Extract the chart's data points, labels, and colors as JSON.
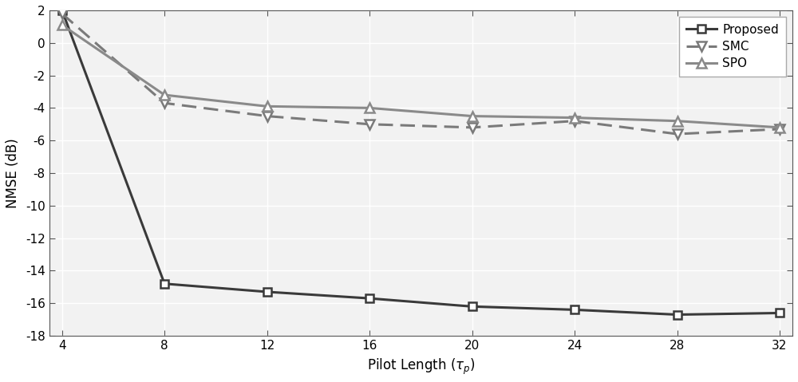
{
  "x": [
    4,
    8,
    12,
    16,
    20,
    24,
    28,
    32
  ],
  "proposed": [
    2.0,
    -14.8,
    -15.3,
    -15.7,
    -16.2,
    -16.4,
    -16.7,
    -16.6
  ],
  "smc": [
    1.8,
    -3.7,
    -4.5,
    -5.0,
    -5.2,
    -4.8,
    -5.6,
    -5.3
  ],
  "spo": [
    1.1,
    -3.2,
    -3.9,
    -4.0,
    -4.5,
    -4.6,
    -4.8,
    -5.2
  ],
  "proposed_color": "#3a3a3a",
  "smc_color": "#7a7a7a",
  "spo_color": "#8a8a8a",
  "xlabel": "Pilot Length ($\\tau_p$)",
  "ylabel": "NMSE (dB)",
  "ylim": [
    -18,
    2
  ],
  "xlim": [
    3.5,
    32.5
  ],
  "yticks": [
    2,
    0,
    -2,
    -4,
    -6,
    -8,
    -10,
    -12,
    -14,
    -16,
    -18
  ],
  "xticks": [
    4,
    8,
    12,
    16,
    20,
    24,
    28,
    32
  ],
  "legend_labels": [
    "Proposed",
    "SMC",
    "SPO"
  ],
  "bg_color": "#ffffff",
  "axes_bg_color": "#f2f2f2",
  "grid_color": "#ffffff"
}
